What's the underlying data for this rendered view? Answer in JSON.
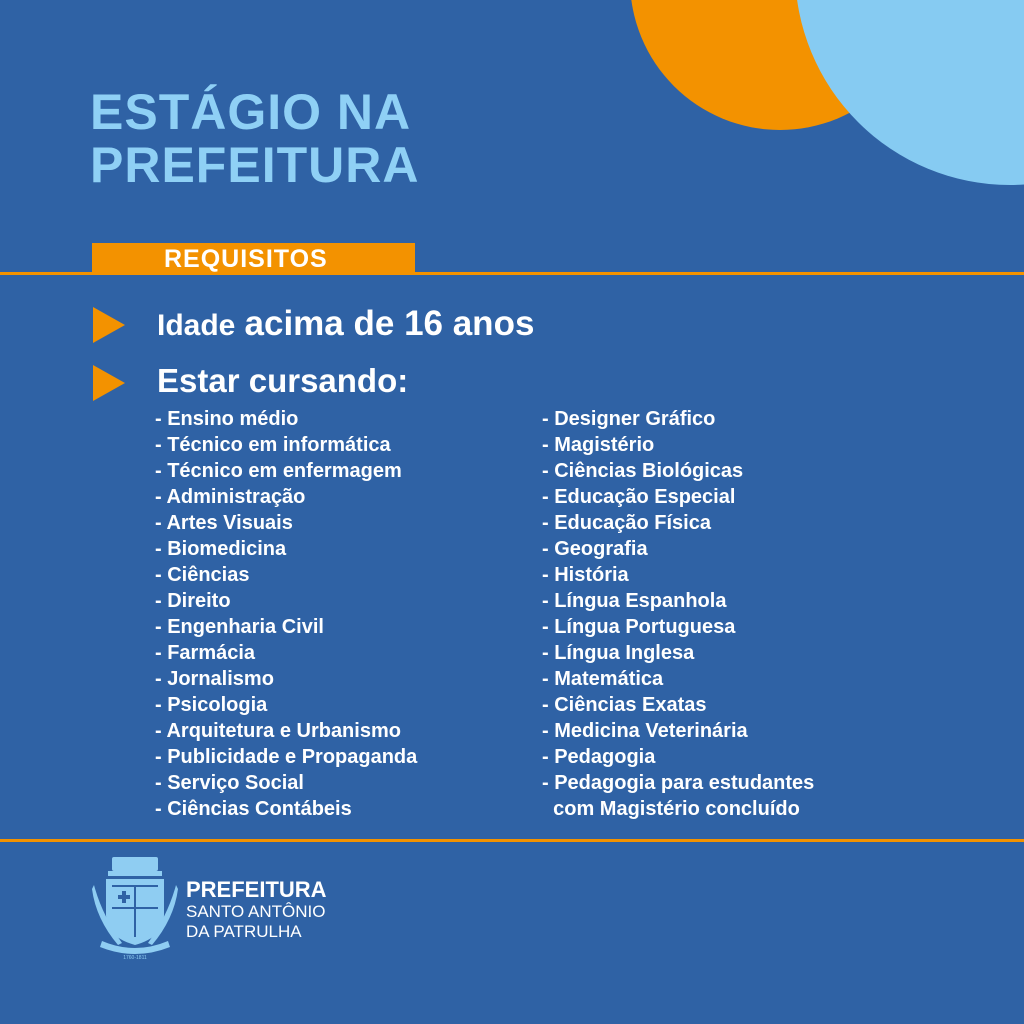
{
  "colors": {
    "background": "#2f62a5",
    "accent": "#f39200",
    "title": "#8fd0f5",
    "circle_blue": "#86cbf2"
  },
  "title": {
    "line1": "ESTÁGIO NA",
    "line2": "PREFEITURA"
  },
  "section_label": "REQUISITOS",
  "requirement1": {
    "prefix": "Idade",
    "emphasis": "acima de 16 anos"
  },
  "requirement2": {
    "label": "Estar cursando:"
  },
  "courses_left": [
    "- Ensino médio",
    "- Técnico em informática",
    "- Técnico em enfermagem",
    "- Administração",
    "- Artes Visuais",
    "- Biomedicina",
    "- Ciências",
    "- Direito",
    "- Engenharia Civil",
    "- Farmácia",
    "- Jornalismo",
    "- Psicologia",
    "- Arquitetura e Urbanismo",
    "- Publicidade e Propaganda",
    "- Serviço Social",
    "- Ciências Contábeis"
  ],
  "courses_right": [
    "- Designer Gráfico",
    "- Magistério",
    "- Ciências Biológicas",
    "- Educação Especial",
    "- Educação Física",
    "- Geografia",
    "- História",
    "- Língua Espanhola",
    "- Língua Portuguesa",
    "- Língua Inglesa",
    "- Matemática",
    "- Ciências Exatas",
    "- Medicina Veterinária",
    "- Pedagogia",
    "- Pedagogia para estudantes",
    "  com Magistério concluído"
  ],
  "footer": {
    "line1": "PREFEITURA",
    "line2": "SANTO ANTÔNIO",
    "line3": "DA PATRULHA",
    "crest_years": "1760-1811"
  }
}
